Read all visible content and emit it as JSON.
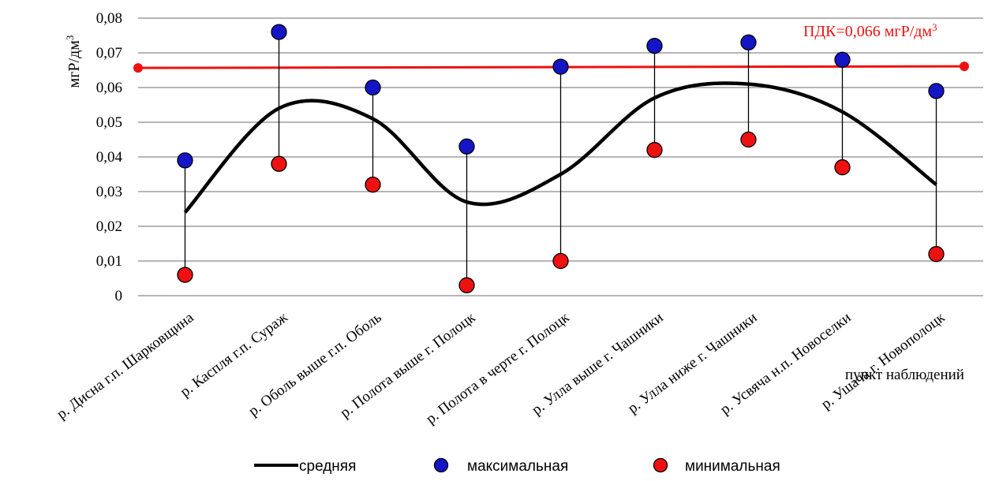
{
  "chart_data": {
    "type": "line",
    "ylabel": "мгР/дм",
    "ylabel_sup": "3",
    "xlabel": "пункт наблюдений",
    "ylim": [
      0,
      0.08
    ],
    "yticks": [
      0,
      0.01,
      0.02,
      0.03,
      0.04,
      0.05,
      0.06,
      0.07,
      0.08
    ],
    "ytick_labels": [
      "0",
      "0,01",
      "0,02",
      "0,03",
      "0,04",
      "0,05",
      "0,06",
      "0,07",
      "0,08"
    ],
    "grid": true,
    "legend_position": "bottom",
    "categories": [
      "р. Дисна г.п. Шарковщина",
      "р. Каспля г.п. Сураж",
      "р. Оболь выше г.п. Оболь",
      "р. Полота выше г. Полоцк",
      "р. Полота в черте г. Полоцк",
      "р. Улла выше г. Чашники",
      "р. Улла ниже г. Чашники",
      "р. Усвяча н.п. Новоселки",
      "р. Ушача г. Новополоцк"
    ],
    "series": [
      {
        "name": "средняя",
        "kind": "smooth-line",
        "color": "#000000",
        "values": [
          0.024,
          0.054,
          0.051,
          0.027,
          0.035,
          0.057,
          0.061,
          0.053,
          0.032
        ]
      },
      {
        "name": "максимальная",
        "kind": "marker",
        "color": "#1515c8",
        "values": [
          0.039,
          0.076,
          0.06,
          0.043,
          0.066,
          0.072,
          0.073,
          0.068,
          0.059
        ]
      },
      {
        "name": "минимальная",
        "kind": "marker",
        "color": "#ee1111",
        "values": [
          0.006,
          0.038,
          0.032,
          0.003,
          0.01,
          0.042,
          0.045,
          0.037,
          0.012
        ]
      }
    ],
    "reference_line": {
      "label": "ПДК=0,066 мгР/дм",
      "label_sup": "3",
      "value": 0.066,
      "color": "#ee1111"
    }
  }
}
